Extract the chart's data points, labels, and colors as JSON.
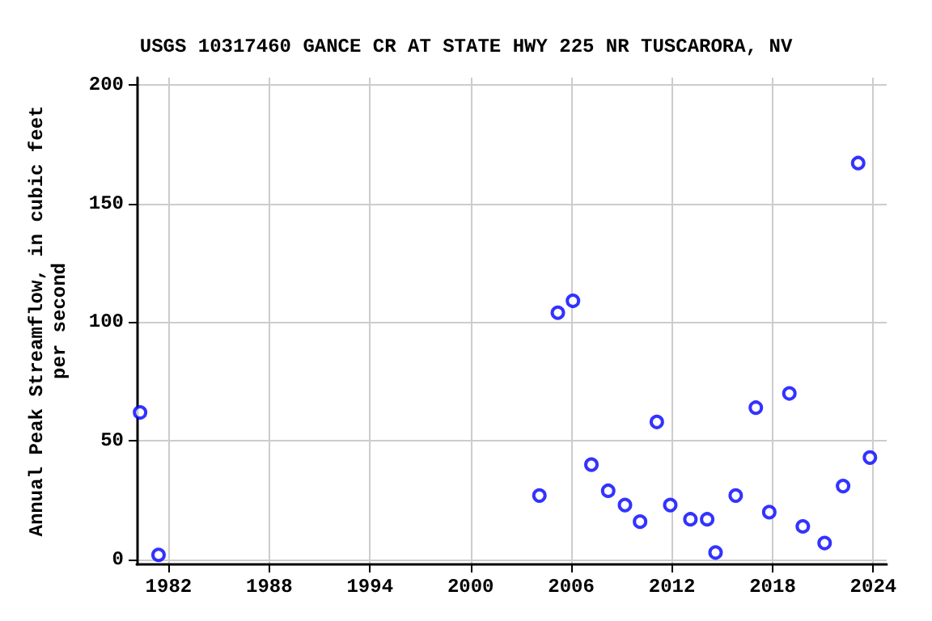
{
  "chart_data": {
    "type": "scatter",
    "title": "USGS 10317460 GANCE CR AT STATE HWY 225 NR TUSCARORA, NV",
    "ylabel": "Annual Peak Streamflow, in cubic feet\nper second",
    "x": [
      1980.3,
      1981.4,
      2004.1,
      2005.2,
      2006.1,
      2007.2,
      2008.2,
      2009.2,
      2010.1,
      2011.1,
      2011.9,
      2013.1,
      2014.1,
      2014.6,
      2015.8,
      2017.0,
      2017.8,
      2019.0,
      2019.8,
      2021.1,
      2022.2,
      2023.1,
      2023.8
    ],
    "series": [
      {
        "color": "#0000ff",
        "values": [
          62,
          2,
          27,
          104,
          109,
          40,
          29,
          23,
          16,
          58,
          23,
          17,
          17,
          3,
          27,
          64,
          20,
          70,
          14,
          7,
          31,
          167,
          43
        ]
      }
    ],
    "xlim": [
      1980.1,
      2024.8
    ],
    "ylim": [
      -2,
      203
    ],
    "xticks": [
      1982,
      1988,
      1994,
      2000,
      2006,
      2012,
      2018,
      2024
    ],
    "yticks": [
      0,
      50,
      100,
      150,
      200
    ],
    "grid": true,
    "marker": "circle"
  }
}
